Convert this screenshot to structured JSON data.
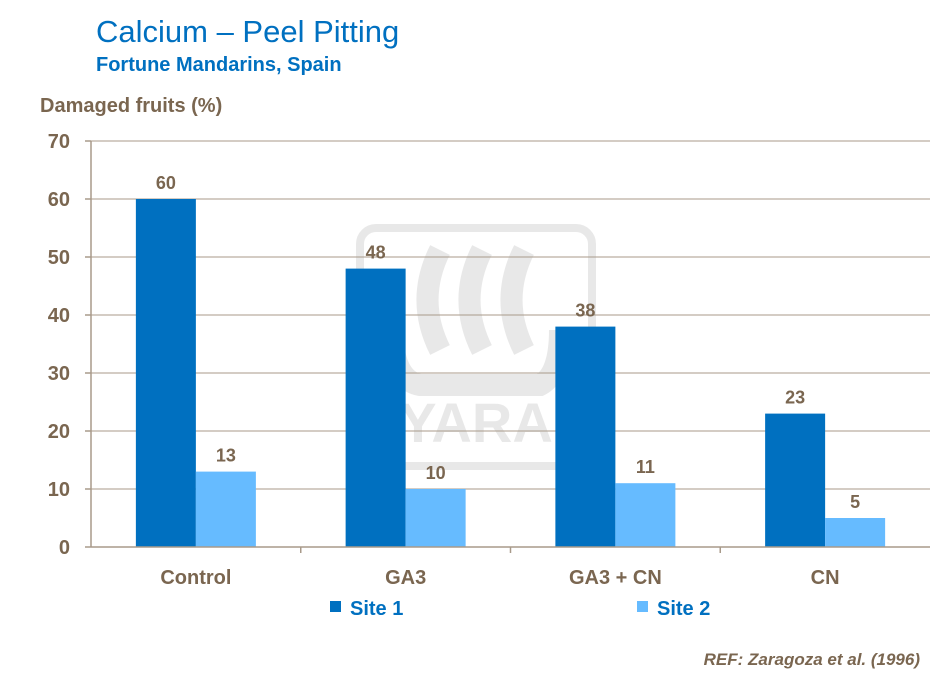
{
  "title": "Calcium – Peel Pitting",
  "subtitle": "Fortune Mandarins, Spain",
  "reference": "REF: Zaragoza et al. (1996)",
  "watermark": "YARA",
  "colors": {
    "site1": "#0070c0",
    "site2": "#66bbff",
    "title": "#0070c0",
    "text": "#7a6650",
    "grid": "#a89a8a"
  },
  "chart_data": {
    "type": "bar",
    "title": "Calcium – Peel Pitting",
    "subtitle": "Fortune Mandarins, Spain",
    "ylabel": "Damaged fruits (%)",
    "xlabel": "",
    "categories": [
      "Control",
      "GA3",
      "GA3 + CN",
      "CN"
    ],
    "series": [
      {
        "name": "Site 1",
        "values": [
          60,
          48,
          38,
          23
        ]
      },
      {
        "name": "Site 2",
        "values": [
          13,
          10,
          11,
          5
        ]
      }
    ],
    "ylim": [
      0,
      70
    ],
    "yticks": [
      0,
      10,
      20,
      30,
      40,
      50,
      60,
      70
    ],
    "grid": true,
    "legend": "bottom"
  }
}
